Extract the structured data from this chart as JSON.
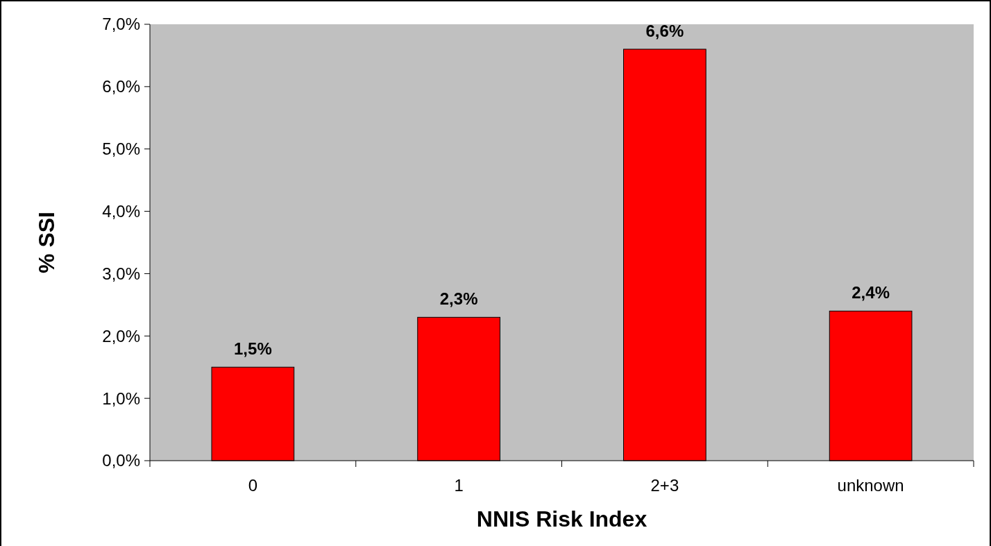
{
  "chart_data": {
    "type": "bar",
    "xlabel": "NNIS Risk Index",
    "ylabel": "% SSI",
    "categories": [
      "0",
      "1",
      "2+3",
      "unknown"
    ],
    "values": [
      1.5,
      2.3,
      6.6,
      2.4
    ],
    "value_labels": [
      "1,5%",
      "2,3%",
      "6,6%",
      "2,4%"
    ],
    "color": "#ff0000",
    "ylim": [
      0,
      7
    ],
    "yticks": [
      {
        "value": 0,
        "label": "0,0%"
      },
      {
        "value": 1,
        "label": "1,0%"
      },
      {
        "value": 2,
        "label": "2,0%"
      },
      {
        "value": 3,
        "label": "3,0%"
      },
      {
        "value": 4,
        "label": "4,0%"
      },
      {
        "value": 5,
        "label": "5,0%"
      },
      {
        "value": 6,
        "label": "6,0%"
      },
      {
        "value": 7,
        "label": "7,0%"
      }
    ],
    "grid": false
  }
}
